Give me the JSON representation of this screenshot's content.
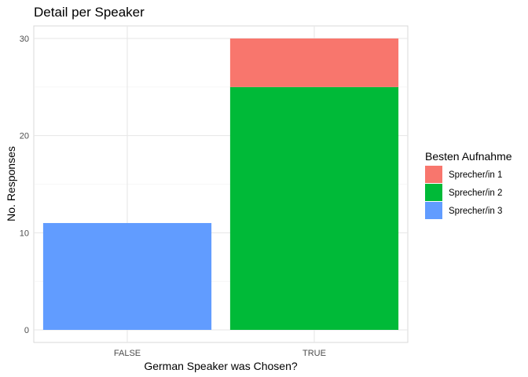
{
  "chart_data": {
    "type": "bar",
    "stacked": true,
    "title": "Detail per Speaker",
    "xlabel": "German Speaker was Chosen?",
    "ylabel": "No. Responses",
    "categories": [
      "FALSE",
      "TRUE"
    ],
    "ylim": [
      0,
      30
    ],
    "yticks": [
      0,
      10,
      20,
      30
    ],
    "grid": true,
    "legend_title": "Besten Aufnahme",
    "legend_position": "right",
    "series": [
      {
        "name": "Sprecher/in 1",
        "color": "#F8766D",
        "values": [
          0,
          5
        ]
      },
      {
        "name": "Sprecher/in 2",
        "color": "#00BA38",
        "values": [
          0,
          25
        ]
      },
      {
        "name": "Sprecher/in 3",
        "color": "#619CFF",
        "values": [
          11,
          0
        ]
      }
    ]
  }
}
